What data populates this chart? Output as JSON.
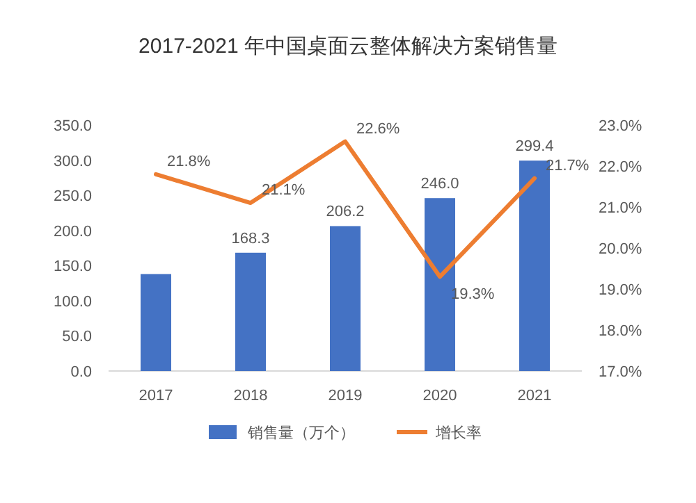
{
  "chart_data": {
    "type": "bar",
    "title": "2017-2021 年中国桌面云整体解决方案销售量",
    "categories": [
      "2017",
      "2018",
      "2019",
      "2020",
      "2021"
    ],
    "series": [
      {
        "name": "销售量（万个）",
        "color": "#4472c4",
        "values": [
          138,
          168.3,
          206.2,
          246.0,
          299.4
        ],
        "value_labels": [
          null,
          "168.3",
          "206.2",
          "246.0",
          "299.4"
        ]
      },
      {
        "name": "增长率",
        "type": "line",
        "axis": "y2",
        "color": "#ed7d31",
        "values": [
          21.8,
          21.1,
          22.6,
          19.3,
          21.7
        ],
        "value_labels": [
          "21.8%",
          "21.1%",
          "22.6%",
          "19.3%",
          "21.7%"
        ]
      }
    ],
    "ylim": [
      0,
      350
    ],
    "yticks": [
      {
        "value": 0,
        "label": "0.0"
      },
      {
        "value": 50,
        "label": "50.0"
      },
      {
        "value": 100,
        "label": "100.0"
      },
      {
        "value": 150,
        "label": "150.0"
      },
      {
        "value": 200,
        "label": "200.0"
      },
      {
        "value": 250,
        "label": "250.0"
      },
      {
        "value": 300,
        "label": "300.0"
      },
      {
        "value": 350,
        "label": "350.0"
      }
    ],
    "y2lim": [
      17,
      23
    ],
    "y2ticks": [
      {
        "value": 17,
        "label": "17.0%"
      },
      {
        "value": 18,
        "label": "18.0%"
      },
      {
        "value": 19,
        "label": "19.0%"
      },
      {
        "value": 20,
        "label": "20.0%"
      },
      {
        "value": 21,
        "label": "21.0%"
      },
      {
        "value": 22,
        "label": "22.0%"
      },
      {
        "value": 23,
        "label": "23.0%"
      }
    ],
    "legend": "bottom"
  }
}
